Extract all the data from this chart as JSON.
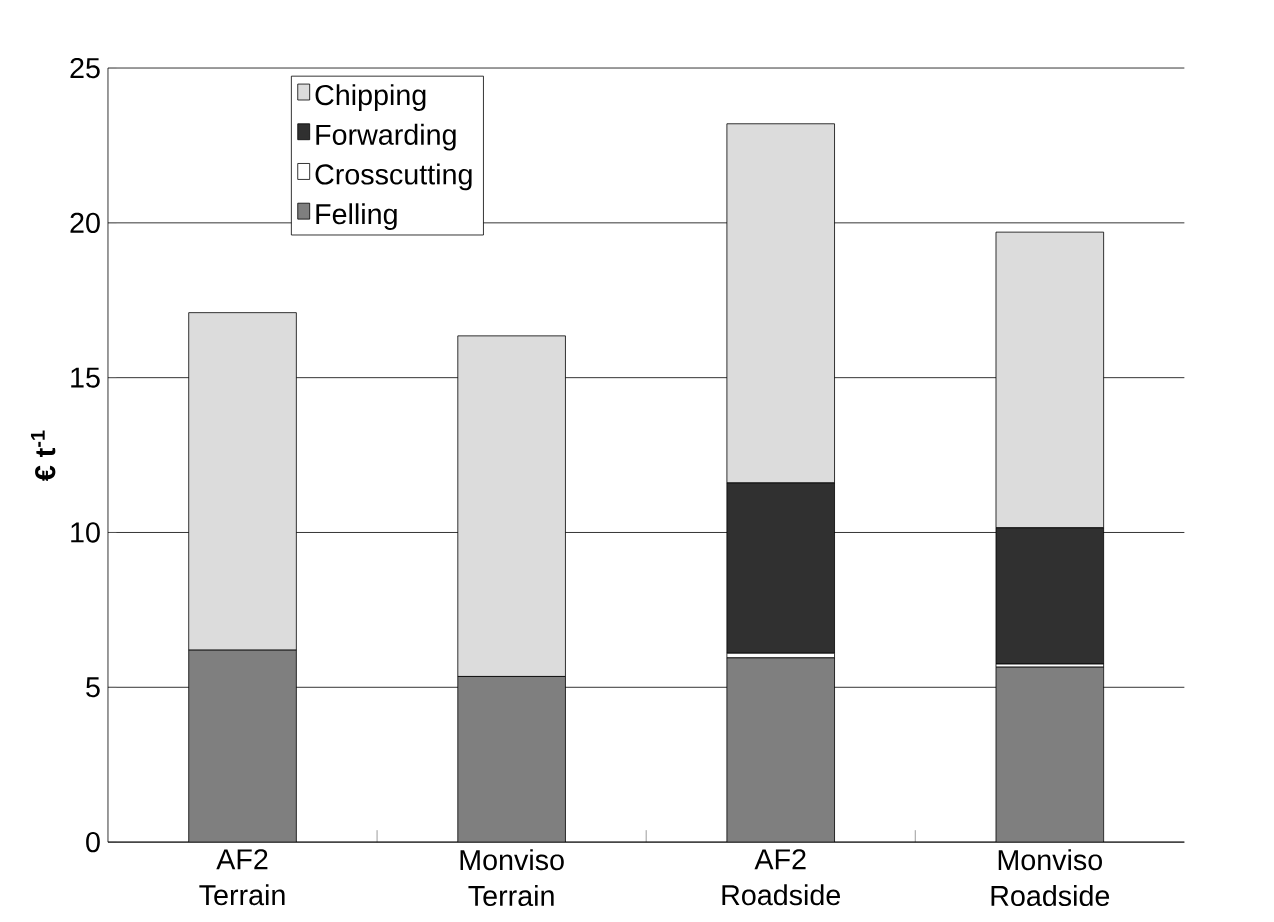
{
  "chart_data": {
    "type": "bar",
    "stacked": true,
    "ylabel": "€ t$^{-1}$",
    "categories": [
      "AF2\nTerrain",
      "Monviso\nTerrain",
      "AF2\nRoadside",
      "Monviso\nRoadside"
    ],
    "series": [
      {
        "name": "Felling",
        "color": "#7f7f7f",
        "values": [
          6.2,
          5.35,
          5.95,
          5.65
        ]
      },
      {
        "name": "Crosscutting",
        "color": "#ffffff",
        "values": [
          0,
          0,
          0.15,
          0.1
        ]
      },
      {
        "name": "Forwarding",
        "color": "#303030",
        "values": [
          0,
          0,
          5.5,
          4.4
        ]
      },
      {
        "name": "Chipping",
        "color": "#dcdcdc",
        "values": [
          10.9,
          11.0,
          11.6,
          9.55
        ]
      }
    ],
    "ylim": [
      0,
      25
    ],
    "yticks": [
      0,
      5,
      10,
      15,
      20,
      25
    ],
    "grid": "y",
    "legend": "top left"
  }
}
